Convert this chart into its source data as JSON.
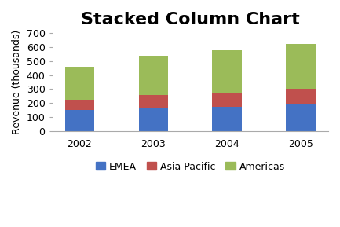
{
  "title": "Stacked Column Chart",
  "years": [
    "2002",
    "2003",
    "2004",
    "2005"
  ],
  "series": {
    "EMEA": [
      150,
      165,
      175,
      190
    ],
    "Asia Pacific": [
      75,
      90,
      100,
      110
    ],
    "Americas": [
      235,
      285,
      305,
      320
    ]
  },
  "colors": {
    "EMEA": "#4472C4",
    "Asia Pacific": "#C0504D",
    "Americas": "#9BBB59"
  },
  "ylabel": "Revenue (thousands)",
  "ylim": [
    0,
    700
  ],
  "yticks": [
    0,
    100,
    200,
    300,
    400,
    500,
    600,
    700
  ],
  "legend_order": [
    "EMEA",
    "Asia Pacific",
    "Americas"
  ],
  "background_color": "#FFFFFF",
  "plot_area_color": "#FFFFFF",
  "title_fontsize": 16,
  "axis_label_fontsize": 9,
  "tick_fontsize": 9,
  "legend_fontsize": 9,
  "bar_width": 0.4
}
